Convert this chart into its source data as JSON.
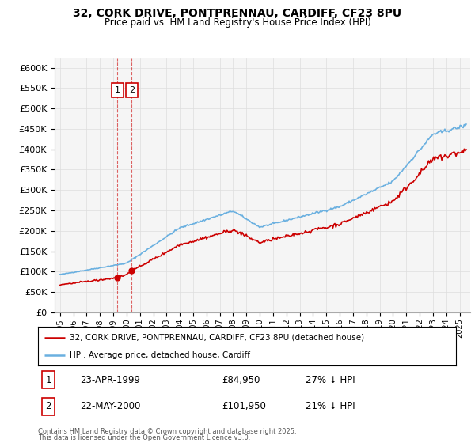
{
  "title_line1": "32, CORK DRIVE, PONTPRENNAU, CARDIFF, CF23 8PU",
  "title_line2": "Price paid vs. HM Land Registry's House Price Index (HPI)",
  "ylabel_ticks": [
    "£0",
    "£50K",
    "£100K",
    "£150K",
    "£200K",
    "£250K",
    "£300K",
    "£350K",
    "£400K",
    "£450K",
    "£500K",
    "£550K",
    "£600K"
  ],
  "ytick_values": [
    0,
    50000,
    100000,
    150000,
    200000,
    250000,
    300000,
    350000,
    400000,
    450000,
    500000,
    550000,
    600000
  ],
  "ylim": [
    0,
    625000
  ],
  "xlim_start": 1994.6,
  "xlim_end": 2025.8,
  "legend_line1": "32, CORK DRIVE, PONTPRENNAU, CARDIFF, CF23 8PU (detached house)",
  "legend_line2": "HPI: Average price, detached house, Cardiff",
  "sale1_date": "23-APR-1999",
  "sale1_price": "£84,950",
  "sale1_hpi": "27% ↓ HPI",
  "sale1_x": 1999.31,
  "sale1_y": 84950,
  "sale2_date": "22-MAY-2000",
  "sale2_price": "£101,950",
  "sale2_hpi": "21% ↓ HPI",
  "sale2_x": 2000.39,
  "sale2_y": 101950,
  "footnote1": "Contains HM Land Registry data © Crown copyright and database right 2025.",
  "footnote2": "This data is licensed under the Open Government Licence v3.0.",
  "hpi_color": "#6ab0e0",
  "price_color": "#cc0000",
  "vline_color": "#cc0000",
  "grid_color": "#dddddd",
  "background_color": "#ffffff",
  "plot_bg_color": "#f5f5f5"
}
